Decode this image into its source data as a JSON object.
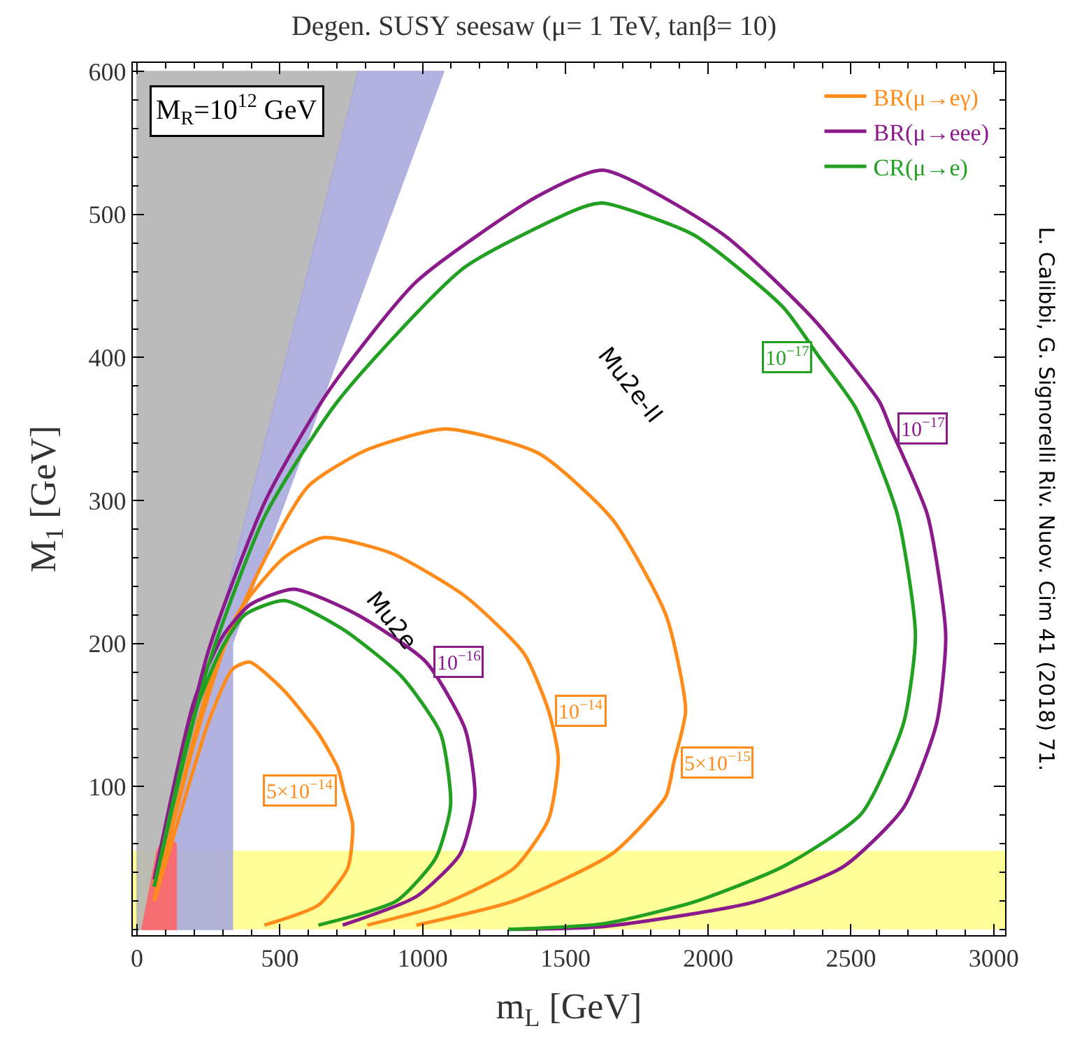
{
  "chart_data": {
    "type": "line",
    "title": "Degen. SUSY seesaw (μ= 1 TeV, tanβ= 10)",
    "xlabel": "m$_{L}$ [GeV]",
    "ylabel": "M$_{1}$ [GeV]",
    "xlim": [
      -15,
      3040
    ],
    "ylim": [
      -4,
      606
    ],
    "xticks": [
      0,
      500,
      1000,
      1500,
      2000,
      2500,
      3000
    ],
    "yticks": [
      100,
      200,
      300,
      400,
      500,
      600
    ],
    "grid": false,
    "legend": "top right",
    "bands": [
      {
        "axis": "y",
        "from": 0,
        "to": 55,
        "color": "#ffff99"
      }
    ],
    "series": [
      {
        "type": "area",
        "color": "#b4b4b4",
        "x": [
          0,
          0,
          775,
          17,
          0
        ],
        "values": [
          0,
          600,
          600,
          0,
          0
        ]
      },
      {
        "type": "area",
        "color": "#aaaade",
        "x": [
          17,
          775,
          1074,
          617,
          334,
          334,
          17
        ],
        "values": [
          0,
          600,
          600,
          353,
          200,
          0,
          0
        ]
      },
      {
        "type": "area",
        "color": "#ff6666",
        "x": [
          17,
          70,
          100,
          137,
          137,
          17
        ],
        "values": [
          0,
          55,
          65,
          60,
          0,
          0
        ]
      },
      {
        "name": "BR(μ→eγ)",
        "color": "#ff8c1a",
        "x": [
          60,
          150,
          250,
          334,
          394,
          515,
          635,
          703,
          724,
          755,
          738,
          635,
          446,
          null,
          60,
          200,
          350,
          515,
          652,
          892,
          1149,
          1355,
          1441,
          1475,
          1441,
          1321,
          1063,
          806,
          null,
          60,
          250,
          450,
          600,
          800,
          1080,
          1406,
          1664,
          1852,
          1921,
          1880,
          1852,
          1664,
          1321,
          978
        ],
        "values": [
          20,
          80,
          145,
          182,
          187,
          167,
          137,
          113,
          97,
          73,
          43,
          17,
          3,
          null,
          20,
          130,
          220,
          260,
          274,
          263,
          233,
          193,
          153,
          120,
          77,
          43,
          17,
          3,
          null,
          20,
          170,
          260,
          310,
          335,
          350,
          333,
          287,
          220,
          153,
          117,
          93,
          53,
          20,
          3
        ]
      },
      {
        "name": "BR(μ→eee)",
        "color": "#8b1a8b",
        "x": [
          60,
          200,
          300,
          395,
          549,
          772,
          1012,
          1149,
          1183,
          1132,
          978,
          720,
          null,
          60,
          250,
          450,
          669,
          978,
          1405,
          1632,
          2053,
          2368,
          2600,
          2640,
          2768,
          2832,
          2800,
          2684,
          2474,
          2158,
          1632,
          1300
        ],
        "values": [
          35,
          160,
          205,
          227,
          238,
          220,
          187,
          140,
          93,
          53,
          23,
          3,
          null,
          35,
          195,
          300,
          376,
          453,
          513,
          531,
          486,
          427,
          369,
          350,
          290,
          206,
          144,
          85,
          44,
          19,
          2,
          0
        ]
      },
      {
        "name": "CR(μ→e)",
        "color": "#22a022",
        "x": [
          60,
          200,
          300,
          377,
          515,
          720,
          926,
          1063,
          1098,
          1046,
          909,
          635,
          null,
          60,
          250,
          450,
          705,
          1147,
          1559,
          1632,
          1947,
          2263,
          2390,
          2516,
          2663,
          2726,
          2684,
          2537,
          2263,
          1947,
          1632,
          1300
        ],
        "values": [
          30,
          150,
          198,
          220,
          230,
          210,
          177,
          137,
          87,
          50,
          20,
          3,
          null,
          30,
          185,
          290,
          370,
          463,
          505,
          508,
          486,
          435,
          400,
          365,
          290,
          206,
          144,
          81,
          44,
          19,
          4,
          0
        ]
      }
    ],
    "annotations": [
      "M$_{R}$=10$^{12}$ GeV",
      "L. Calibbi, G. Signorelli Riv. Nuov. Cim 41 (2018) 71.",
      "Mu2e",
      "Mu2e-II",
      {
        "text": "5×10$^{−14}$",
        "x": 724,
        "y": 97
      },
      {
        "text": "10$^{−14}$",
        "x": 1441,
        "y": 153
      },
      {
        "text": "5×10$^{−15}$",
        "x": 1880,
        "y": 117
      },
      {
        "text": "10$^{−16}$",
        "x": 1012,
        "y": 187
      },
      {
        "text": "10$^{−17}$",
        "x": 2390,
        "y": 400
      },
      {
        "text": "10$^{−17}$",
        "x": 2640,
        "y": 350
      }
    ]
  }
}
